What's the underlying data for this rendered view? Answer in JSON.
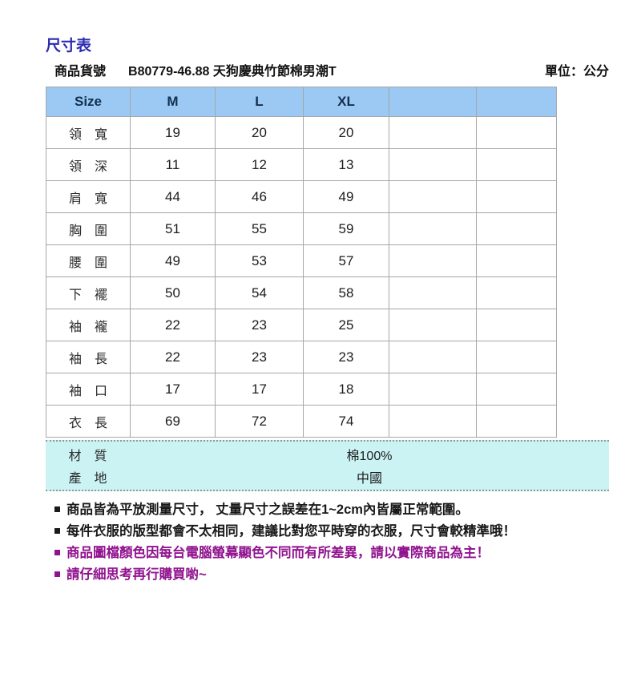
{
  "title": "尺寸表",
  "meta": {
    "product_code_label": "商品貨號",
    "product_code": "B80779-46.88 天狗慶典竹節棉男潮T",
    "unit_label": "單位：公分"
  },
  "size_table": {
    "columns": [
      "Size",
      "M",
      "L",
      "XL",
      "",
      ""
    ],
    "rows": [
      {
        "label": "領　寬",
        "values": [
          "19",
          "20",
          "20",
          "",
          ""
        ]
      },
      {
        "label": "領　深",
        "values": [
          "11",
          "12",
          "13",
          "",
          ""
        ]
      },
      {
        "label": "肩　寬",
        "values": [
          "44",
          "46",
          "49",
          "",
          ""
        ]
      },
      {
        "label": "胸　圍",
        "values": [
          "51",
          "55",
          "59",
          "",
          ""
        ]
      },
      {
        "label": "腰　圍",
        "values": [
          "49",
          "53",
          "57",
          "",
          ""
        ]
      },
      {
        "label": "下　襬",
        "values": [
          "50",
          "54",
          "58",
          "",
          ""
        ]
      },
      {
        "label": "袖　襱",
        "values": [
          "22",
          "23",
          "25",
          "",
          ""
        ]
      },
      {
        "label": "袖　長",
        "values": [
          "22",
          "23",
          "23",
          "",
          ""
        ]
      },
      {
        "label": "袖　口",
        "values": [
          "17",
          "17",
          "18",
          "",
          ""
        ]
      },
      {
        "label": "衣　長",
        "values": [
          "69",
          "72",
          "74",
          "",
          ""
        ]
      }
    ]
  },
  "info_rows": [
    {
      "label": "材　質",
      "value": "棉100%"
    },
    {
      "label": "產　地",
      "value": "中國"
    }
  ],
  "notes": [
    {
      "text": "商品皆為平放測量尺寸， 丈量尺寸之誤差在1~2cm內皆屬正常範圍。"
    },
    {
      "text": "每件衣服的版型都會不太相同，建議比對您平時穿的衣服，尺寸會較精準哦！"
    },
    {
      "text": "商品圖檔顏色因每台電腦螢幕顯色不同而有所差異，請以實際商品為主！"
    },
    {
      "text": "請仔細思考再行購買喲~"
    }
  ],
  "colors": {
    "title_blue": "#2B2BB2",
    "header_bg": "#9BC9F3",
    "table_border": "#A6A6A6",
    "info_bg": "#CCF3F3",
    "note_purple": "#90128F",
    "note_black": "#1A1A1A"
  }
}
